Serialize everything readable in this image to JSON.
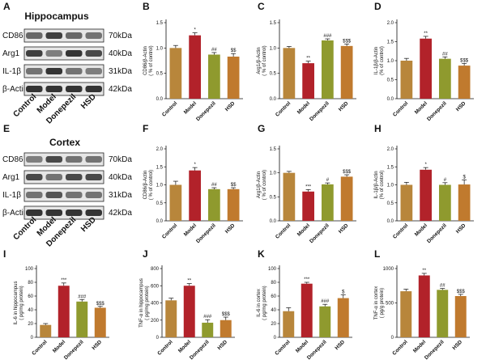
{
  "blots": [
    {
      "panel": "A",
      "title": "Hippocampus",
      "rows": [
        {
          "name": "CD86",
          "size": "70kDa"
        },
        {
          "name": "Arg1",
          "size": "40kDa"
        },
        {
          "name": "IL-1β",
          "size": "31kDa"
        },
        {
          "name": "β-Actin",
          "size": "42kDa"
        }
      ],
      "lanes": [
        "Control",
        "Model",
        "Donepezil",
        "HSD"
      ],
      "band_intensity": [
        [
          0.55,
          0.75,
          0.55,
          0.5
        ],
        [
          0.75,
          0.45,
          0.8,
          0.7
        ],
        [
          0.5,
          0.8,
          0.5,
          0.45
        ],
        [
          0.8,
          0.8,
          0.8,
          0.8
        ]
      ]
    },
    {
      "panel": "E",
      "title": "Cortex",
      "rows": [
        {
          "name": "CD86",
          "size": "70kDa"
        },
        {
          "name": "Arg1",
          "size": "40kDa"
        },
        {
          "name": "IL-1β",
          "size": "31kDa"
        },
        {
          "name": "β-Actin",
          "size": "42kDa"
        }
      ],
      "lanes": [
        "Control",
        "Model",
        "Donepezil",
        "HSD"
      ],
      "band_intensity": [
        [
          0.45,
          0.7,
          0.5,
          0.5
        ],
        [
          0.7,
          0.5,
          0.7,
          0.7
        ],
        [
          0.5,
          0.65,
          0.5,
          0.5
        ],
        [
          0.8,
          0.8,
          0.8,
          0.8
        ]
      ]
    }
  ],
  "colors": {
    "Control": "#b8863b",
    "Model": "#b2222a",
    "Donepezil": "#8f9a2e",
    "HSD": "#c07a2e"
  },
  "chart_data": [
    {
      "panel": "B",
      "type": "bar",
      "categories": [
        "Control",
        "Model",
        "Donepezil",
        "HSD"
      ],
      "values": [
        1.0,
        1.25,
        0.87,
        0.83
      ],
      "errors": [
        0.05,
        0.05,
        0.04,
        0.06
      ],
      "significance": [
        "",
        "*",
        "##",
        "$$"
      ],
      "ylabel": "CD86/β-Actin\n( % of control)",
      "ylim": [
        0,
        1.5
      ],
      "yticks": [
        "0.0",
        "0.5",
        "1.0",
        "1.5"
      ]
    },
    {
      "panel": "C",
      "type": "bar",
      "categories": [
        "Control",
        "Model",
        "Donepezil",
        "HSD"
      ],
      "values": [
        1.0,
        0.7,
        1.15,
        1.04
      ],
      "errors": [
        0.03,
        0.04,
        0.03,
        0.04
      ],
      "significance": [
        "",
        "**",
        "###",
        "$$$"
      ],
      "ylabel": "Arg1/β-Actin\n( % of control)",
      "ylim": [
        0,
        1.5
      ],
      "yticks": [
        "0.0",
        "0.5",
        "1.0",
        "1.5"
      ]
    },
    {
      "panel": "D",
      "type": "bar",
      "categories": [
        "Control",
        "Model",
        "Donepezil",
        "HSD"
      ],
      "values": [
        1.0,
        1.58,
        1.05,
        0.87
      ],
      "errors": [
        0.06,
        0.06,
        0.05,
        0.06
      ],
      "significance": [
        "",
        "**",
        "##",
        "$$$"
      ],
      "ylabel": "IL-1β/β-Actin\n(% of control)",
      "ylim": [
        0,
        2.0
      ],
      "yticks": [
        "0.0",
        "0.5",
        "1.0",
        "1.5",
        "2.0"
      ]
    },
    {
      "panel": "F",
      "type": "bar",
      "categories": [
        "Control",
        "Model",
        "Donepezil",
        "HSD"
      ],
      "values": [
        1.0,
        1.4,
        0.88,
        0.88
      ],
      "errors": [
        0.1,
        0.08,
        0.04,
        0.04
      ],
      "significance": [
        "",
        "*",
        "##",
        "$$"
      ],
      "ylabel": "CD86/β-Actin\n( % of control)",
      "ylim": [
        0,
        2.0
      ],
      "yticks": [
        "0.0",
        "0.5",
        "1.0",
        "1.5",
        "2.0"
      ]
    },
    {
      "panel": "G",
      "type": "bar",
      "categories": [
        "Control",
        "Model",
        "Donepezil",
        "HSD"
      ],
      "values": [
        1.0,
        0.61,
        0.76,
        0.92
      ],
      "errors": [
        0.03,
        0.04,
        0.03,
        0.04
      ],
      "significance": [
        "",
        "***",
        "#",
        "$$$"
      ],
      "ylabel": "Arg1/β-Actin\n( % of control)",
      "ylim": [
        0,
        1.5
      ],
      "yticks": [
        "0.0",
        "0.5",
        "1.0",
        "1.5"
      ]
    },
    {
      "panel": "H",
      "type": "bar",
      "categories": [
        "Control",
        "Model",
        "Donepezil",
        "HSD"
      ],
      "values": [
        1.0,
        1.42,
        1.0,
        1.01
      ],
      "errors": [
        0.07,
        0.06,
        0.06,
        0.13
      ],
      "significance": [
        "",
        "*",
        "#",
        "$"
      ],
      "ylabel": "IL-1β/β-Actin\n(% of control)",
      "ylim": [
        0,
        2.0
      ],
      "yticks": [
        "0.0",
        "0.5",
        "1.0",
        "1.5",
        "2.0"
      ]
    },
    {
      "panel": "I",
      "type": "bar",
      "categories": [
        "Control",
        "Model",
        "Donepezil",
        "HSD"
      ],
      "values": [
        18,
        75,
        52,
        43
      ],
      "errors": [
        2,
        4,
        3,
        2
      ],
      "significance": [
        "",
        "***",
        "###",
        "$$$"
      ],
      "ylabel": "IL-6 in hippocampus\n( pg/mg protein)",
      "ylim": [
        0,
        100
      ],
      "yticks": [
        "0",
        "20",
        "40",
        "60",
        "80",
        "100"
      ]
    },
    {
      "panel": "J",
      "type": "bar",
      "categories": [
        "Control",
        "Model",
        "Donepezil",
        "HSD"
      ],
      "values": [
        430,
        600,
        170,
        200
      ],
      "errors": [
        25,
        25,
        35,
        35
      ],
      "significance": [
        "",
        "**",
        "###",
        "$$$"
      ],
      "ylabel": "TNF-α in hippocampus\n( pg/mg protein)",
      "ylim": [
        0,
        800
      ],
      "yticks": [
        "0",
        "200",
        "400",
        "600",
        "800"
      ]
    },
    {
      "panel": "K",
      "type": "bar",
      "categories": [
        "Control",
        "Model",
        "Donepezil",
        "HSD"
      ],
      "values": [
        38,
        78,
        45,
        57
      ],
      "errors": [
        5,
        2,
        3,
        5
      ],
      "significance": [
        "",
        "***",
        "###",
        "$"
      ],
      "ylabel": "IL-6 in cortex\n( pg/mg protein)",
      "ylim": [
        0,
        100
      ],
      "yticks": [
        "0",
        "20",
        "40",
        "60",
        "80",
        "100"
      ]
    },
    {
      "panel": "L",
      "type": "bar",
      "categories": [
        "Control",
        "Model",
        "Donepezil",
        "HSD"
      ],
      "values": [
        670,
        900,
        690,
        600
      ],
      "errors": [
        30,
        30,
        20,
        25
      ],
      "significance": [
        "",
        "**",
        "##",
        "$$$"
      ],
      "ylabel": "TNF-α in cortex\n( pg/g protein)",
      "ylim": [
        0,
        1000
      ],
      "yticks": [
        "0",
        "500",
        "1000"
      ]
    }
  ]
}
